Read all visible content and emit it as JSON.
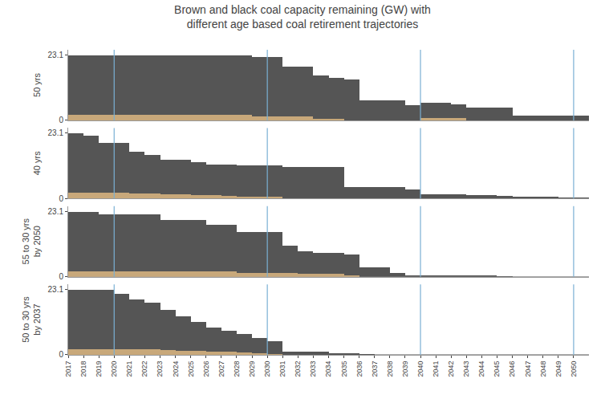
{
  "chart_data": [
    {
      "type": "bar",
      "stacked": true,
      "title": "Brown and black coal capacity remaining (GW) with\ndifferent age based coal retirement trajectories",
      "ylabel": "50 yrs",
      "x": [
        2017,
        2018,
        2019,
        2020,
        2021,
        2022,
        2023,
        2024,
        2025,
        2026,
        2027,
        2028,
        2029,
        2030,
        2031,
        2032,
        2033,
        2034,
        2035,
        2036,
        2037,
        2038,
        2039,
        2040,
        2041,
        2042,
        2043,
        2044,
        2045,
        2046,
        2047,
        2048,
        2049,
        2050
      ],
      "series": [
        {
          "color": "#c8a87a",
          "values": [
            2.0,
            2.0,
            2.0,
            2.0,
            2.0,
            2.0,
            2.0,
            2.0,
            2.0,
            2.0,
            2.0,
            2.0,
            1.5,
            1.5,
            1.5,
            1.5,
            0.5,
            0.5,
            0.0,
            0.0,
            0.0,
            0.0,
            0.0,
            0.7,
            0.7,
            0.7,
            0.0,
            0.0,
            0.0,
            0.0,
            0.0,
            0.0,
            0.0,
            0.0
          ]
        },
        {
          "color": "#555555",
          "values": [
            21.0,
            21.0,
            21.0,
            21.0,
            21.0,
            21.0,
            21.0,
            21.0,
            21.0,
            21.0,
            21.0,
            21.0,
            21.0,
            21.0,
            17.5,
            17.5,
            15.5,
            14.5,
            14.5,
            7.0,
            7.0,
            7.0,
            5.5,
            5.5,
            5.5,
            5.0,
            4.5,
            4.5,
            4.5,
            1.8,
            1.8,
            1.8,
            1.8,
            1.8
          ]
        }
      ],
      "xlim": [
        2017,
        2051
      ],
      "ylim": [
        0,
        24.948
      ],
      "yticks": [
        0,
        23.1
      ],
      "tick_labels": "y",
      "grid": false,
      "vlines": {
        "x": [
          2020,
          2030,
          2040,
          2050
        ],
        "color": "#7ab0d4"
      }
    },
    {
      "type": "bar",
      "stacked": true,
      "ylabel": "40 yrs",
      "x": [
        2017,
        2018,
        2019,
        2020,
        2021,
        2022,
        2023,
        2024,
        2025,
        2026,
        2027,
        2028,
        2029,
        2030,
        2031,
        2032,
        2033,
        2034,
        2035,
        2036,
        2037,
        2038,
        2039,
        2040,
        2041,
        2042,
        2043,
        2044,
        2045,
        2046,
        2047,
        2048,
        2049,
        2050
      ],
      "series": [
        {
          "color": "#c8a87a",
          "values": [
            2.0,
            2.0,
            2.0,
            2.0,
            1.8,
            1.8,
            1.5,
            1.5,
            1.2,
            1.0,
            0.8,
            0.5,
            0.5,
            0.5,
            0.0,
            0.0,
            0.0,
            0.0,
            0.0,
            0.0,
            0.0,
            0.0,
            0.0,
            0.0,
            0.0,
            0.0,
            0.0,
            0.0,
            0.0,
            0.0,
            0.0,
            0.0,
            0.0,
            0.0
          ]
        },
        {
          "color": "#555555",
          "values": [
            21.0,
            20.0,
            17.5,
            17.5,
            14.5,
            13.5,
            12.0,
            12.0,
            11.5,
            11.0,
            11.0,
            11.0,
            11.0,
            11.0,
            11.0,
            11.0,
            11.0,
            11.0,
            4.0,
            4.0,
            4.0,
            4.0,
            3.0,
            1.5,
            1.5,
            1.5,
            1.2,
            1.0,
            0.8,
            0.5,
            0.3,
            0.3,
            0.2,
            0.2
          ]
        }
      ],
      "xlim": [
        2017,
        2051
      ],
      "ylim": [
        0,
        24.948
      ],
      "yticks": [
        0,
        23.1
      ],
      "tick_labels": "y",
      "grid": false,
      "vlines": {
        "x": [
          2020,
          2030,
          2040,
          2050
        ],
        "color": "#7ab0d4"
      }
    },
    {
      "type": "bar",
      "stacked": true,
      "ylabel": "55 to 30 yrs\nby 2050",
      "x": [
        2017,
        2018,
        2019,
        2020,
        2021,
        2022,
        2023,
        2024,
        2025,
        2026,
        2027,
        2028,
        2029,
        2030,
        2031,
        2032,
        2033,
        2034,
        2035,
        2036,
        2037,
        2038,
        2039,
        2040,
        2041,
        2042,
        2043,
        2044,
        2045,
        2046,
        2047,
        2048,
        2049,
        2050
      ],
      "series": [
        {
          "color": "#c8a87a",
          "values": [
            2.0,
            2.0,
            2.0,
            2.0,
            2.0,
            2.0,
            2.0,
            2.0,
            2.0,
            2.0,
            2.0,
            1.5,
            1.5,
            1.5,
            1.5,
            1.0,
            1.0,
            1.0,
            0.5,
            0.0,
            0.0,
            0.0,
            0.0,
            0.0,
            0.0,
            0.0,
            0.0,
            0.0,
            0.0,
            0.0,
            0.0,
            0.0,
            0.0,
            0.0
          ]
        },
        {
          "color": "#555555",
          "values": [
            21.0,
            21.0,
            20.0,
            20.0,
            20.0,
            20.0,
            18.0,
            18.0,
            18.0,
            16.5,
            16.5,
            14.5,
            14.5,
            14.5,
            9.5,
            8.0,
            7.5,
            7.5,
            7.5,
            3.5,
            3.5,
            1.5,
            0.5,
            0.5,
            0.5,
            0.5,
            0.3,
            0.3,
            0.2,
            0.0,
            0.0,
            0.0,
            0.0,
            0.0
          ]
        }
      ],
      "xlim": [
        2017,
        2051
      ],
      "ylim": [
        0,
        24.948
      ],
      "yticks": [
        0,
        23.1
      ],
      "tick_labels": "y",
      "grid": false,
      "vlines": {
        "x": [
          2020,
          2030,
          2040,
          2050
        ],
        "color": "#7ab0d4"
      }
    },
    {
      "type": "bar",
      "stacked": true,
      "ylabel": "50 to 30 yrs\nby 2037",
      "x": [
        2017,
        2018,
        2019,
        2020,
        2021,
        2022,
        2023,
        2024,
        2025,
        2026,
        2027,
        2028,
        2029,
        2030,
        2031,
        2032,
        2033,
        2034,
        2035,
        2036,
        2037,
        2038,
        2039,
        2040,
        2041,
        2042,
        2043,
        2044,
        2045,
        2046,
        2047,
        2048,
        2049,
        2050
      ],
      "series": [
        {
          "color": "#c8a87a",
          "values": [
            2.0,
            2.0,
            2.0,
            2.0,
            2.0,
            2.0,
            1.8,
            1.5,
            1.5,
            1.2,
            1.0,
            0.8,
            0.5,
            0.3,
            0.0,
            0.0,
            0.0,
            0.0,
            0.0,
            0.0,
            0.0,
            0.0,
            0.0,
            0.0,
            0.0,
            0.0,
            0.0,
            0.0,
            0.0,
            0.0,
            0.0,
            0.0,
            0.0,
            0.0
          ]
        },
        {
          "color": "#555555",
          "values": [
            21.0,
            21.0,
            21.0,
            19.5,
            17.5,
            16.5,
            14.0,
            12.0,
            10.0,
            8.5,
            7.5,
            6.5,
            5.5,
            4.5,
            1.2,
            1.2,
            1.0,
            0.5,
            0.3,
            0.1,
            0.0,
            0.0,
            0.0,
            0.0,
            0.0,
            0.0,
            0.0,
            0.0,
            0.0,
            0.0,
            0.0,
            0.0,
            0.0,
            0.0
          ]
        }
      ],
      "xlim": [
        2017,
        2051
      ],
      "ylim": [
        0,
        24.948
      ],
      "yticks": [
        0,
        23.1
      ],
      "xticks": [
        2017,
        2018,
        2019,
        2020,
        2021,
        2022,
        2023,
        2024,
        2025,
        2026,
        2027,
        2028,
        2029,
        2030,
        2031,
        2032,
        2033,
        2034,
        2035,
        2036,
        2037,
        2038,
        2039,
        2040,
        2041,
        2042,
        2043,
        2044,
        2045,
        2046,
        2047,
        2048,
        2049,
        2050
      ],
      "grid": false,
      "vlines": {
        "x": [
          2020,
          2030,
          2040,
          2050
        ],
        "color": "#7ab0d4"
      }
    }
  ]
}
